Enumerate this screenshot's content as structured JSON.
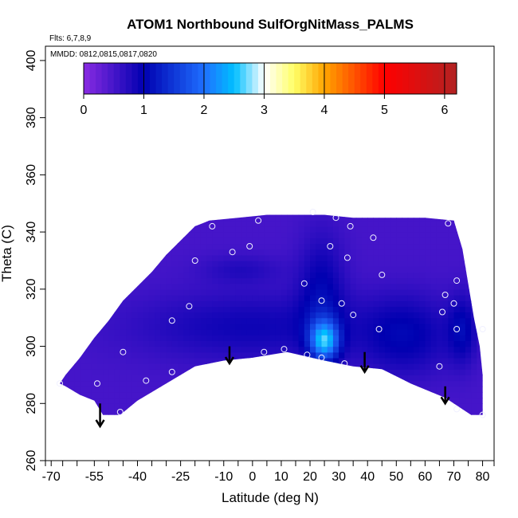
{
  "chart_data": {
    "type": "heatmap",
    "title": "ATOM1 Northbound SulfOrgNitMass_PALMS",
    "flights_label": "Flts: 6,7,8,9",
    "dates_label": "MMDD: 0812,0815,0817,0820",
    "xlabel": "Latitude (deg N)",
    "ylabel": "Theta (C)",
    "xlim": [
      -72,
      84
    ],
    "ylim": [
      260,
      405
    ],
    "x_tick_labels": [
      "-70",
      "-55",
      "-40",
      "-25",
      "-10",
      "0",
      "10",
      "20",
      "30",
      "40",
      "50",
      "60",
      "70",
      "80"
    ],
    "x_tick_values": [
      -70,
      -55,
      -40,
      -25,
      -10,
      0,
      10,
      20,
      30,
      40,
      50,
      60,
      70,
      80
    ],
    "x_minor_ticks": [
      -72,
      -66,
      -61,
      -50,
      -45,
      -35,
      -30,
      -20,
      -15,
      -5,
      5,
      15,
      25,
      35,
      45,
      55,
      65,
      75,
      84
    ],
    "y_tick_labels": [
      "260",
      "280",
      "300",
      "320",
      "340",
      "360",
      "380",
      "400"
    ],
    "y_tick_values": [
      260,
      280,
      300,
      320,
      340,
      360,
      380,
      400
    ],
    "colorbar": {
      "min": 0,
      "max": 6.2,
      "tick_labels": [
        "0",
        "1",
        "2",
        "3",
        "4",
        "5",
        "6"
      ],
      "tick_values": [
        0,
        1,
        2,
        3,
        4,
        5,
        6
      ],
      "colors": [
        "#8a2be2",
        "#0000b0",
        "#1f6fff",
        "#00bfff",
        "#ffffff",
        "#ffff66",
        "#ffa500",
        "#ff0000",
        "#b22222"
      ]
    },
    "field_outline": [
      [
        -67,
        287
      ],
      [
        -65,
        290
      ],
      [
        -60,
        296
      ],
      [
        -55,
        303
      ],
      [
        -50,
        309
      ],
      [
        -45,
        316
      ],
      [
        -40,
        321
      ],
      [
        -35,
        326
      ],
      [
        -30,
        332
      ],
      [
        -25,
        337
      ],
      [
        -20,
        342
      ],
      [
        -15,
        344
      ],
      [
        -5,
        345
      ],
      [
        5,
        346
      ],
      [
        15,
        346
      ],
      [
        25,
        346
      ],
      [
        35,
        345
      ],
      [
        45,
        345
      ],
      [
        53,
        345
      ],
      [
        60,
        345
      ],
      [
        70,
        344
      ],
      [
        73,
        334
      ],
      [
        75,
        322
      ],
      [
        77,
        310
      ],
      [
        79,
        300
      ],
      [
        80,
        290
      ],
      [
        80,
        276
      ],
      [
        76,
        276
      ],
      [
        67,
        282
      ],
      [
        55,
        287
      ],
      [
        45,
        292
      ],
      [
        35,
        293
      ],
      [
        25,
        295
      ],
      [
        12,
        298
      ],
      [
        0,
        296
      ],
      [
        -10,
        295
      ],
      [
        -20,
        293
      ],
      [
        -30,
        287
      ],
      [
        -40,
        281
      ],
      [
        -46,
        276
      ],
      [
        -52,
        276
      ],
      [
        -55,
        281
      ],
      [
        -60,
        283
      ],
      [
        -65,
        286
      ],
      [
        -67,
        287
      ]
    ],
    "field_base_value": 0.5,
    "field_features": [
      {
        "x": -2,
        "y": 306,
        "rx": 40,
        "ry": 12,
        "value": 0.9
      },
      {
        "x": -5,
        "y": 326,
        "rx": 14,
        "ry": 5,
        "value": 0.75
      },
      {
        "x": 23,
        "y": 318,
        "rx": 8,
        "ry": 20,
        "value": 1.0
      },
      {
        "x": 24,
        "y": 301,
        "rx": 5,
        "ry": 7,
        "value": 2.2
      },
      {
        "x": 52,
        "y": 303,
        "rx": 16,
        "ry": 14,
        "value": 1.0
      },
      {
        "x": 72,
        "y": 305,
        "rx": 5,
        "ry": 12,
        "value": 1.0
      }
    ],
    "sample_points": [
      {
        "lat": -67,
        "theta": 287
      },
      {
        "lat": -54,
        "theta": 287
      },
      {
        "lat": -46,
        "theta": 277
      },
      {
        "lat": -45,
        "theta": 298
      },
      {
        "lat": -37,
        "theta": 288
      },
      {
        "lat": -28,
        "theta": 291
      },
      {
        "lat": -28,
        "theta": 309
      },
      {
        "lat": -22,
        "theta": 314
      },
      {
        "lat": -20,
        "theta": 330
      },
      {
        "lat": -14,
        "theta": 342
      },
      {
        "lat": -7,
        "theta": 333
      },
      {
        "lat": -1,
        "theta": 335
      },
      {
        "lat": 2,
        "theta": 344
      },
      {
        "lat": 4,
        "theta": 298
      },
      {
        "lat": 11,
        "theta": 299
      },
      {
        "lat": 19,
        "theta": 297
      },
      {
        "lat": 18,
        "theta": 322
      },
      {
        "lat": 21,
        "theta": 347
      },
      {
        "lat": 24,
        "theta": 316
      },
      {
        "lat": 24,
        "theta": 296
      },
      {
        "lat": 27,
        "theta": 335
      },
      {
        "lat": 29,
        "theta": 345
      },
      {
        "lat": 31,
        "theta": 315
      },
      {
        "lat": 32,
        "theta": 294
      },
      {
        "lat": 33,
        "theta": 331
      },
      {
        "lat": 34,
        "theta": 342
      },
      {
        "lat": 35,
        "theta": 311
      },
      {
        "lat": 42,
        "theta": 338
      },
      {
        "lat": 44,
        "theta": 306
      },
      {
        "lat": 45,
        "theta": 325
      },
      {
        "lat": 65,
        "theta": 293
      },
      {
        "lat": 66,
        "theta": 312
      },
      {
        "lat": 67,
        "theta": 318
      },
      {
        "lat": 68,
        "theta": 343
      },
      {
        "lat": 70,
        "theta": 315
      },
      {
        "lat": 71,
        "theta": 323
      },
      {
        "lat": 71,
        "theta": 306
      },
      {
        "lat": 71,
        "theta": 278
      },
      {
        "lat": 80,
        "theta": 306
      },
      {
        "lat": 80,
        "theta": 276
      }
    ],
    "arrows": [
      {
        "lat": -53,
        "theta_top": 280,
        "theta_bottom": 272
      },
      {
        "lat": -8,
        "theta_top": 300,
        "theta_bottom": 294
      },
      {
        "lat": 39,
        "theta_top": 298,
        "theta_bottom": 291
      },
      {
        "lat": 67,
        "theta_top": 286,
        "theta_bottom": 280
      }
    ]
  }
}
